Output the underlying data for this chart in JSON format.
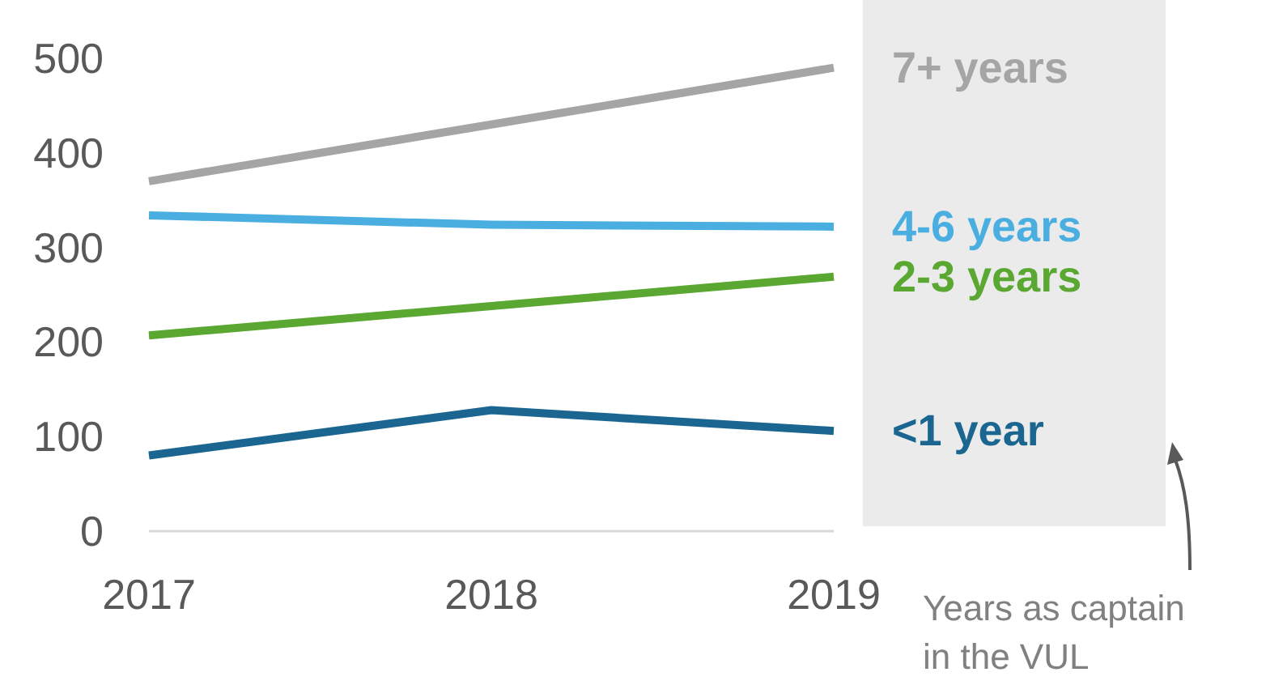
{
  "chart_data": {
    "type": "line",
    "categories": [
      "2017",
      "2018",
      "2019"
    ],
    "ylim": [
      0,
      500
    ],
    "yticks": [
      0,
      100,
      200,
      300,
      400,
      500
    ],
    "grid": false,
    "legend": false,
    "marker": "none",
    "line_style": "solid",
    "series": [
      {
        "name": "7+ years",
        "color": "#a5a5a5",
        "values": [
          370,
          430,
          490
        ]
      },
      {
        "name": "4-6 years",
        "color": "#4aafe0",
        "values": [
          334,
          324,
          322
        ]
      },
      {
        "name": "2-3 years",
        "color": "#5aa832",
        "values": [
          207,
          238,
          269
        ]
      },
      {
        "name": "<1 year",
        "color": "#1a6690",
        "values": [
          80,
          128,
          106
        ]
      }
    ],
    "annotations": [
      "Years as captain in the VUL"
    ]
  }
}
